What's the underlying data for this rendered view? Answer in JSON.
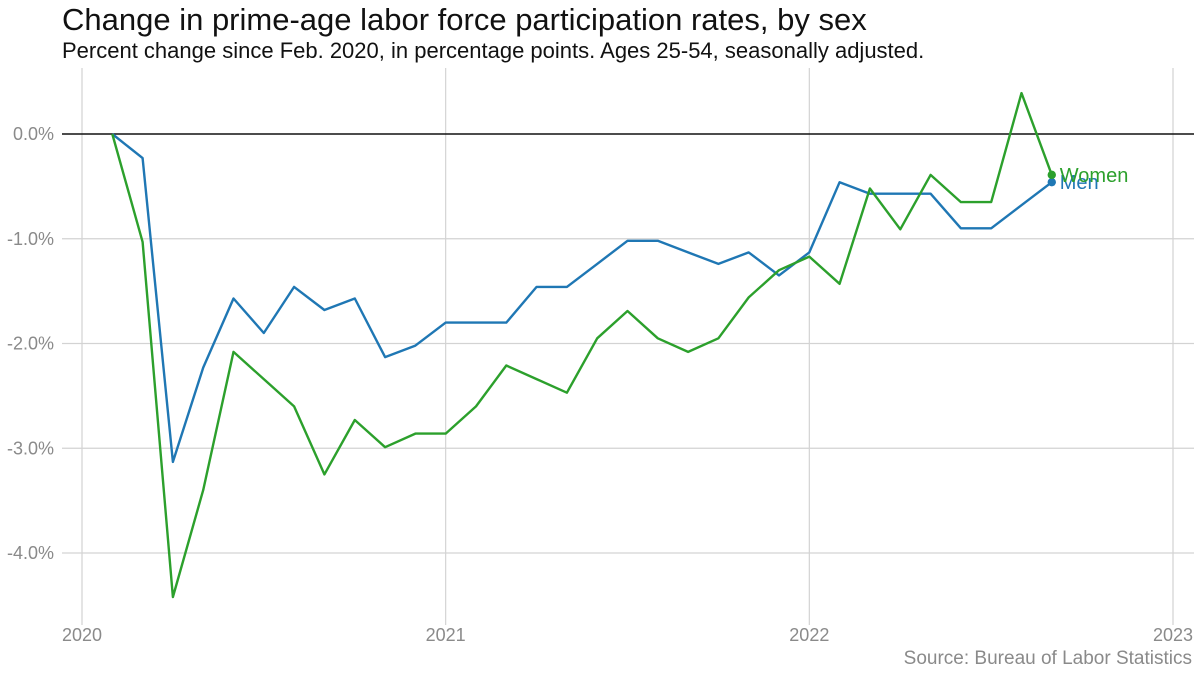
{
  "title": "Change in prime-age labor force participation rates, by sex",
  "subtitle": "Percent change since Feb. 2020, in percentage points. Ages 25-54, seasonally adjusted.",
  "source": "Source: Bureau of Labor Statistics",
  "chart_data": {
    "type": "line",
    "title": "Change in prime-age labor force participation rates, by sex",
    "subtitle": "Percent change since Feb. 2020, in percentage points. Ages 25-54, seasonally adjusted.",
    "xlabel": "",
    "ylabel": "",
    "x_ticks": [
      "2020",
      "2021",
      "2022",
      "2023"
    ],
    "y_ticks": [
      0,
      -1,
      -2,
      -3,
      -4
    ],
    "y_tick_labels": [
      "0.0%",
      "-1.0%",
      "-2.0%",
      "-3.0%",
      "-4.0%"
    ],
    "xlim": [
      "2020-01",
      "2023-01"
    ],
    "ylim": [
      -4.75,
      0.6
    ],
    "grid": true,
    "reference_line": 0,
    "x": [
      "2020-02",
      "2020-03",
      "2020-04",
      "2020-05",
      "2020-06",
      "2020-07",
      "2020-08",
      "2020-09",
      "2020-10",
      "2020-11",
      "2020-12",
      "2021-01",
      "2021-02",
      "2021-03",
      "2021-04",
      "2021-05",
      "2021-06",
      "2021-07",
      "2021-08",
      "2021-09",
      "2021-10",
      "2021-11",
      "2021-12",
      "2022-01",
      "2022-02",
      "2022-03",
      "2022-04",
      "2022-05",
      "2022-06",
      "2022-07",
      "2022-08",
      "2022-09"
    ],
    "series": [
      {
        "name": "Men",
        "color": "#1f77b4",
        "values": [
          0.0,
          -0.23,
          -3.13,
          -2.23,
          -1.57,
          -1.9,
          -1.46,
          -1.68,
          -1.57,
          -2.13,
          -2.02,
          -1.8,
          -1.8,
          -1.8,
          -1.46,
          -1.46,
          -1.24,
          -1.02,
          -1.02,
          -1.13,
          -1.24,
          -1.13,
          -1.35,
          -1.13,
          -0.46,
          -0.57,
          -0.57,
          -0.57,
          -0.9,
          -0.9,
          -0.68,
          -0.46
        ]
      },
      {
        "name": "Women",
        "color": "#2ca02c",
        "values": [
          0.0,
          -1.03,
          -4.42,
          -3.4,
          -2.08,
          -2.34,
          -2.6,
          -3.25,
          -2.73,
          -2.99,
          -2.86,
          -2.86,
          -2.6,
          -2.21,
          -2.34,
          -2.47,
          -1.95,
          -1.69,
          -1.95,
          -2.08,
          -1.95,
          -1.56,
          -1.3,
          -1.17,
          -1.43,
          -0.52,
          -0.91,
          -0.39,
          -0.65,
          -0.65,
          0.39,
          -0.39
        ]
      }
    ]
  }
}
